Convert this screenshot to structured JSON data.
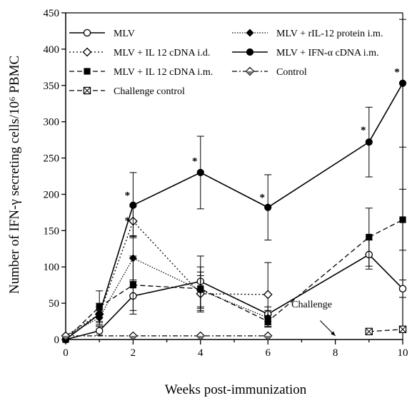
{
  "chart_data": {
    "type": "line",
    "xlabel": "Weeks post-immunization",
    "ylabel": "Number of IFN-γ secreting cells/10⁶ PBMC",
    "xlim": [
      0,
      10
    ],
    "ylim": [
      0,
      450
    ],
    "xticks": [
      "0",
      "2",
      "4",
      "6",
      "8",
      "10"
    ],
    "yticks": [
      "0",
      "50",
      "100",
      "150",
      "200",
      "250",
      "300",
      "350",
      "400",
      "450"
    ],
    "grid": false,
    "legend_position": "top",
    "series": [
      {
        "name": "MLV",
        "marker": "open-circle",
        "dash": "solid",
        "x": [
          0,
          1,
          2,
          4,
          6,
          9,
          10
        ],
        "y": [
          0,
          12,
          60,
          80,
          35,
          117,
          70
        ],
        "err": [
          0,
          6,
          20,
          35,
          10,
          20,
          12
        ]
      },
      {
        "name": "MLV + IL 12 cDNA i.d.",
        "marker": "open-diamond",
        "dash": "dotted",
        "x": [
          0,
          1,
          2,
          4,
          6
        ],
        "y": [
          5,
          35,
          163,
          63,
          62
        ],
        "err": [
          0,
          10,
          20,
          25,
          44
        ]
      },
      {
        "name": "MLV + IL 12 cDNA i.m.",
        "marker": "filled-square",
        "dash": "dashed",
        "x": [
          0,
          1,
          2,
          4,
          6,
          9,
          10
        ],
        "y": [
          0,
          45,
          75,
          70,
          25,
          141,
          165
        ],
        "err": [
          0,
          22,
          40,
          30,
          8,
          40,
          42
        ]
      },
      {
        "name": "Challenge control",
        "marker": "crossed-square",
        "dash": "dashed",
        "x": [
          9,
          10
        ],
        "y": [
          11,
          14
        ],
        "err": [
          0,
          0
        ]
      },
      {
        "name": "MLV + rIL-12 protein i.m.",
        "marker": "filled-diamond",
        "dash": "dot-dot",
        "x": [
          0,
          1,
          2,
          4,
          6
        ],
        "y": [
          5,
          30,
          112,
          68,
          30
        ],
        "err": [
          0,
          10,
          30,
          25,
          10
        ]
      },
      {
        "name": "MLV + IFN-α cDNA i.m.",
        "marker": "filled-circle",
        "dash": "solid",
        "x": [
          0,
          1,
          2,
          4,
          6,
          9,
          10
        ],
        "y": [
          0,
          35,
          185,
          230,
          182,
          272,
          353
        ],
        "err": [
          0,
          15,
          45,
          50,
          45,
          48,
          88
        ]
      },
      {
        "name": "Control",
        "marker": "half-diamond",
        "dash": "dash-dot",
        "x": [
          0,
          2,
          4,
          6
        ],
        "y": [
          5,
          5,
          5,
          5
        ],
        "err": [
          0,
          0,
          0,
          0
        ]
      }
    ],
    "significance": [
      {
        "label": "*",
        "x": 2,
        "y": 200
      },
      {
        "label": "*",
        "x": 2,
        "y": 165
      },
      {
        "label": "*",
        "x": 4,
        "y": 247
      },
      {
        "label": "*",
        "x": 6,
        "y": 197
      },
      {
        "label": "*",
        "x": 9,
        "y": 290
      },
      {
        "label": "*",
        "x": 10,
        "y": 370
      }
    ],
    "annotation": {
      "text": "Challenge",
      "x": 7.3,
      "y": 50,
      "arrow_to": [
        8,
        5
      ]
    }
  }
}
